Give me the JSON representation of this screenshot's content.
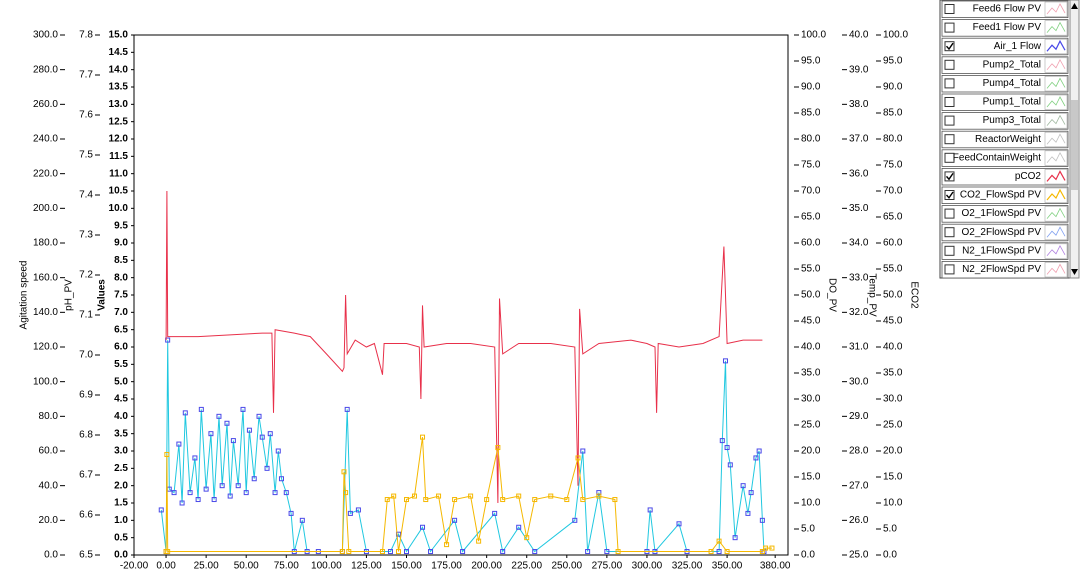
{
  "chart_data": {
    "type": "line",
    "ylabel": "Values",
    "ylim": [
      0,
      15
    ],
    "yticks": [
      {
        "value": 0,
        "label": "0.0"
      },
      0.5,
      {
        "value": 1,
        "label": "1.0"
      },
      1.5,
      {
        "value": 2,
        "label": "2.0"
      },
      2.5,
      {
        "value": 3,
        "label": "3.0"
      },
      3.5,
      {
        "value": 4,
        "label": "4.0"
      },
      4.5,
      {
        "value": 5,
        "label": "5.0"
      },
      5.5,
      {
        "value": 6,
        "label": "6.0"
      },
      6.5,
      {
        "value": 7,
        "label": "7.0"
      },
      7.5,
      {
        "value": 8,
        "label": "8.0"
      },
      8.5,
      {
        "value": 9,
        "label": "9.0"
      },
      9.5,
      {
        "value": 10,
        "label": "10.0"
      },
      10.5,
      {
        "value": 11,
        "label": "11.0"
      },
      11.5,
      {
        "value": 12,
        "label": "12.0"
      },
      12.5,
      {
        "value": 13,
        "label": "13.0"
      },
      13.5,
      {
        "value": 14,
        "label": "14.0"
      },
      14.5,
      {
        "value": 15,
        "label": "15.0"
      }
    ],
    "xlim": [
      -20,
      388
    ],
    "xticks": [
      {
        "value": -20,
        "label": "-20.00"
      },
      {
        "value": 0,
        "label": "0.00"
      },
      {
        "value": 25,
        "label": "25.00"
      },
      {
        "value": 50,
        "label": "50.00"
      },
      {
        "value": 75,
        "label": "75.00"
      },
      {
        "value": 100,
        "label": "100.00"
      },
      {
        "value": 125,
        "label": "125.00"
      },
      {
        "value": 150,
        "label": "150.00"
      },
      {
        "value": 175,
        "label": "175.00"
      },
      {
        "value": 200,
        "label": "200.00"
      },
      {
        "value": 225,
        "label": "225.00"
      },
      {
        "value": 250,
        "label": "250.00"
      },
      {
        "value": 275,
        "label": "275.00"
      },
      {
        "value": 300,
        "label": "300.00"
      },
      {
        "value": 325,
        "label": "325.00"
      },
      {
        "value": 350,
        "label": "350.00"
      },
      {
        "value": 380,
        "label": "380.00"
      }
    ],
    "left_axes": [
      {
        "label": "Agitation speed",
        "ylim": [
          0,
          300
        ],
        "yticks": [
          {
            "value": 0,
            "label": "0.0"
          },
          {
            "value": 20,
            "label": "20.0"
          },
          {
            "value": 40,
            "label": "40.0"
          },
          {
            "value": 60,
            "label": "60.0"
          },
          {
            "value": 80,
            "label": "80.0"
          },
          {
            "value": 100,
            "label": "100.0"
          },
          {
            "value": 120,
            "label": "120.0"
          },
          {
            "value": 140,
            "label": "140.0"
          },
          {
            "value": 160,
            "label": "160.0"
          },
          {
            "value": 180,
            "label": "180.0"
          },
          {
            "value": 200,
            "label": "200.0"
          },
          {
            "value": 220,
            "label": "220.0"
          },
          {
            "value": 240,
            "label": "240.0"
          },
          {
            "value": 260,
            "label": "260.0"
          },
          {
            "value": 280,
            "label": "280.0"
          },
          {
            "value": 300,
            "label": "300.0"
          }
        ]
      },
      {
        "label": "pH_PV",
        "ylim": [
          6.5,
          7.8
        ],
        "yticks": [
          6.5,
          6.6,
          6.7,
          6.8,
          6.9,
          {
            "value": 7,
            "label": "7.0"
          },
          7.1,
          7.2,
          7.3,
          7.4,
          7.5,
          7.6,
          7.7,
          7.8
        ]
      }
    ],
    "right_axes": [
      {
        "label": "DO_PV",
        "ylim": [
          0,
          100
        ],
        "yticks": [
          {
            "value": 0,
            "label": "0.0"
          },
          {
            "value": 5,
            "label": "5.0"
          },
          {
            "value": 10,
            "label": "10.0"
          },
          {
            "value": 15,
            "label": "15.0"
          },
          {
            "value": 20,
            "label": "20.0"
          },
          {
            "value": 25,
            "label": "25.0"
          },
          {
            "value": 30,
            "label": "30.0"
          },
          {
            "value": 35,
            "label": "35.0"
          },
          {
            "value": 40,
            "label": "40.0"
          },
          {
            "value": 45,
            "label": "45.0"
          },
          {
            "value": 50,
            "label": "50.0"
          },
          {
            "value": 55,
            "label": "55.0"
          },
          {
            "value": 60,
            "label": "60.0"
          },
          {
            "value": 65,
            "label": "65.0"
          },
          {
            "value": 70,
            "label": "70.0"
          },
          {
            "value": 75,
            "label": "75.0"
          },
          {
            "value": 80,
            "label": "80.0"
          },
          {
            "value": 85,
            "label": "85.0"
          },
          {
            "value": 90,
            "label": "90.0"
          },
          {
            "value": 95,
            "label": "95.0"
          },
          {
            "value": 100,
            "label": "100.0"
          }
        ]
      },
      {
        "label": "Temp_PV",
        "ylim": [
          25,
          40
        ],
        "yticks": [
          {
            "value": 25,
            "label": "25.0"
          },
          {
            "value": 26,
            "label": "26.0"
          },
          {
            "value": 27,
            "label": "27.0"
          },
          {
            "value": 28,
            "label": "28.0"
          },
          {
            "value": 29,
            "label": "29.0"
          },
          {
            "value": 30,
            "label": "30.0"
          },
          {
            "value": 31,
            "label": "31.0"
          },
          {
            "value": 32,
            "label": "32.0"
          },
          {
            "value": 33,
            "label": "33.0"
          },
          {
            "value": 34,
            "label": "34.0"
          },
          {
            "value": 35,
            "label": "35.0"
          },
          {
            "value": 36,
            "label": "36.0"
          },
          {
            "value": 37,
            "label": "37.0"
          },
          {
            "value": 38,
            "label": "38.0"
          },
          {
            "value": 39,
            "label": "39.0"
          },
          {
            "value": 40,
            "label": "40.0"
          }
        ]
      },
      {
        "label": "ECO2",
        "ylim": [
          0,
          100
        ],
        "yticks": [
          {
            "value": 0,
            "label": "0.0"
          },
          {
            "value": 5,
            "label": "5.0"
          },
          {
            "value": 10,
            "label": "10.0"
          },
          {
            "value": 15,
            "label": "15.0"
          },
          {
            "value": 20,
            "label": "20.0"
          },
          {
            "value": 25,
            "label": "25.0"
          },
          {
            "value": 30,
            "label": "30.0"
          },
          {
            "value": 35,
            "label": "35.0"
          },
          {
            "value": 40,
            "label": "40.0"
          },
          {
            "value": 45,
            "label": "45.0"
          },
          {
            "value": 50,
            "label": "50.0"
          },
          {
            "value": 55,
            "label": "55.0"
          },
          {
            "value": 60,
            "label": "60.0"
          },
          {
            "value": 65,
            "label": "65.0"
          },
          {
            "value": 70,
            "label": "70.0"
          },
          {
            "value": 75,
            "label": "75.0"
          },
          {
            "value": 80,
            "label": "80.0"
          },
          {
            "value": 85,
            "label": "85.0"
          },
          {
            "value": 90,
            "label": "90.0"
          },
          {
            "value": 95,
            "label": "95.0"
          },
          {
            "value": 100,
            "label": "100.0"
          }
        ]
      }
    ],
    "series": [
      {
        "name": "Feed6 Flow PV",
        "color": "#f0a0b0",
        "visible": false
      },
      {
        "name": "Feed1 Flow PV",
        "color": "#80d080",
        "visible": false
      },
      {
        "name": "Air_1 Flow",
        "color": "#20c8e0",
        "marker_color": "#4848e8",
        "visible": true,
        "x": [
          -3,
          0,
          1,
          2,
          5,
          8,
          10,
          12,
          15,
          18,
          20,
          22,
          25,
          28,
          30,
          33,
          35,
          38,
          40,
          42,
          45,
          48,
          50,
          52,
          55,
          58,
          60,
          63,
          65,
          68,
          70,
          72,
          75,
          78,
          80,
          85,
          88,
          95,
          110,
          113,
          115,
          120,
          125,
          140,
          145,
          150,
          160,
          165,
          180,
          185,
          205,
          210,
          220,
          230,
          255,
          260,
          263,
          270,
          275,
          300,
          302,
          305,
          320,
          325,
          345,
          347,
          349,
          350,
          352,
          355,
          360,
          363,
          365,
          368,
          370,
          372,
          373
        ],
        "values": [
          1.3,
          0.1,
          6.2,
          1.9,
          1.8,
          3.2,
          1.5,
          4.1,
          1.8,
          2.8,
          1.6,
          4.2,
          1.9,
          3.5,
          1.6,
          4.0,
          2.0,
          3.8,
          1.7,
          3.3,
          2.0,
          4.2,
          1.8,
          3.6,
          2.2,
          4.0,
          3.4,
          2.5,
          3.5,
          1.8,
          3.0,
          2.2,
          1.8,
          1.2,
          0.1,
          1.0,
          0.1,
          0.1,
          0.1,
          4.2,
          1.2,
          1.3,
          0.1,
          0.1,
          0.6,
          0.1,
          0.8,
          0.1,
          1.0,
          0.1,
          1.2,
          0.1,
          0.8,
          0.1,
          1.0,
          3.0,
          0.1,
          1.8,
          0.1,
          0.1,
          1.3,
          0.1,
          0.9,
          0.1,
          0.1,
          3.3,
          5.6,
          3.1,
          2.6,
          0.5,
          2.0,
          1.2,
          1.8,
          2.8,
          3.0,
          1.0,
          0.1
        ]
      },
      {
        "name": "Pump2_Total",
        "color": "#f0a0b0",
        "visible": false
      },
      {
        "name": "Pump4_Total",
        "color": "#80d080",
        "visible": false
      },
      {
        "name": "Pump1_Total",
        "color": "#80d080",
        "visible": false
      },
      {
        "name": "Pump3_Total",
        "color": "#a0b8a0",
        "visible": false
      },
      {
        "name": "ReactorWeight",
        "color": "#c0c0c0",
        "visible": false
      },
      {
        "name": "FeedContainWeight",
        "color": "#c0c0c0",
        "visible": false
      },
      {
        "name": "pCO2",
        "color": "#e8304a",
        "visible": true,
        "x": [
          0,
          0.5,
          1,
          20,
          40,
          60,
          66,
          67,
          68,
          80,
          90,
          100,
          110,
          111,
          112,
          113,
          118,
          125,
          130,
          135,
          136,
          150,
          158,
          159,
          160,
          161,
          175,
          190,
          205,
          207,
          208,
          210,
          220,
          240,
          255,
          257,
          258,
          260,
          270,
          290,
          300,
          305,
          306,
          307,
          320,
          335,
          345,
          348,
          350,
          360,
          372
        ],
        "values": [
          6.2,
          10.5,
          6.3,
          6.3,
          6.35,
          6.4,
          6.4,
          4.1,
          6.5,
          6.4,
          6.3,
          5.8,
          5.3,
          5.4,
          7.5,
          5.8,
          6.2,
          6.0,
          6.1,
          5.2,
          6.1,
          6.1,
          6.0,
          4.5,
          7.2,
          6.0,
          6.1,
          6.1,
          6.0,
          1.5,
          7.4,
          5.8,
          6.1,
          6.1,
          6.0,
          2.0,
          7.1,
          5.8,
          6.1,
          6.2,
          6.1,
          6.0,
          4.1,
          6.1,
          6.0,
          6.1,
          6.3,
          8.9,
          6.1,
          6.2,
          6.2
        ]
      },
      {
        "name": "CO2_FlowSpd PV",
        "color": "#f5b800",
        "visible": true,
        "x": [
          0,
          0.5,
          1,
          110,
          111,
          112,
          114,
          135,
          138,
          142,
          145,
          150,
          155,
          160,
          162,
          170,
          175,
          180,
          190,
          195,
          200,
          207,
          210,
          220,
          225,
          230,
          240,
          250,
          257,
          260,
          270,
          280,
          282,
          340,
          345,
          350,
          372,
          374,
          378
        ],
        "values": [
          0.1,
          2.9,
          0.1,
          0.1,
          2.4,
          1.8,
          0.1,
          0.1,
          1.6,
          1.7,
          0.1,
          1.6,
          1.7,
          3.4,
          1.6,
          1.7,
          0.3,
          1.6,
          1.7,
          0.4,
          1.6,
          3.1,
          1.6,
          1.7,
          0.5,
          1.6,
          1.7,
          1.6,
          2.8,
          1.6,
          1.7,
          1.6,
          0.1,
          0.1,
          0.4,
          0.1,
          0.1,
          0.2,
          0.2
        ]
      },
      {
        "name": "O2_1FlowSpd PV",
        "color": "#80d080",
        "visible": false
      },
      {
        "name": "O2_2FlowSpd PV",
        "color": "#80a0f0",
        "visible": false
      },
      {
        "name": "N2_1FlowSpd PV",
        "color": "#b080e0",
        "visible": false
      },
      {
        "name": "N2_2FlowSpd PV",
        "color": "#f0a0b0",
        "visible": false
      }
    ]
  }
}
